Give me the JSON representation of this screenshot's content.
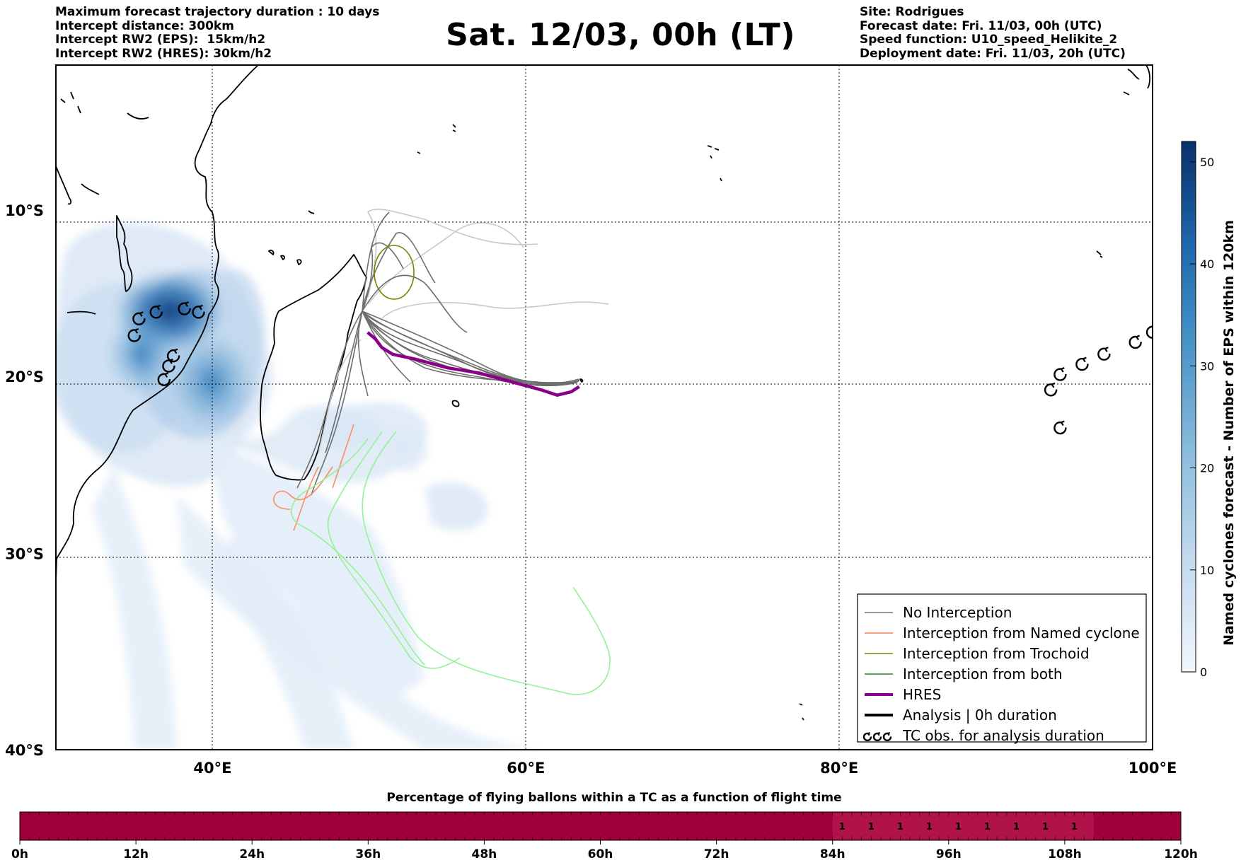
{
  "header": {
    "left_lines": [
      "Maximum forecast trajectory duration : 10 days",
      "Intercept distance: 300km",
      "Intercept RW2 (EPS):  15km/h2",
      "Intercept RW2 (HRES): 30km/h2"
    ],
    "title": "Sat. 12/03, 00h (LT)",
    "right_lines": [
      "Site: Rodrigues",
      "Forecast date: Fri. 11/03, 00h (UTC)",
      "Speed function: U10_speed_Helikite_2",
      "Deployment date: Fri. 11/03, 20h (UTC)"
    ]
  },
  "map": {
    "lon_range": [
      30,
      100
    ],
    "lat_range": [
      -40,
      -1
    ],
    "lon_ticks": [
      {
        "value": 40,
        "label": "40°E"
      },
      {
        "value": 60,
        "label": "60°E"
      },
      {
        "value": 80,
        "label": "80°E"
      },
      {
        "value": 100,
        "label": "100°E"
      }
    ],
    "lat_ticks": [
      {
        "value": -10,
        "label": "10°S"
      },
      {
        "value": -20,
        "label": "20°S"
      },
      {
        "value": -30,
        "label": "30°S"
      },
      {
        "value": -40,
        "label": "40°S"
      }
    ],
    "colors": {
      "no_interception": "#777777",
      "named_cyclone": "#ff7f50",
      "trochoid": "#808000",
      "both": "#90ee90",
      "hres": "#8b008b",
      "analysis": "#000000"
    },
    "tc_obs_positions": [
      [
        35,
        -17.6
      ],
      [
        35.3,
        -16.6
      ],
      [
        36.4,
        -16.2
      ],
      [
        38.2,
        -16
      ],
      [
        39.1,
        -16.2
      ],
      [
        37.5,
        -18.8
      ],
      [
        37.2,
        -19.4
      ],
      [
        36.9,
        -20.2
      ],
      [
        93.5,
        -20.8
      ],
      [
        94.1,
        -19.9
      ],
      [
        95.5,
        -19.3
      ],
      [
        96.9,
        -18.7
      ],
      [
        98.9,
        -18
      ],
      [
        100,
        -17.4
      ],
      [
        94.1,
        -23
      ]
    ],
    "hres_track": [
      [
        49.9,
        -17.4
      ],
      [
        50.4,
        -17.8
      ],
      [
        50.8,
        -18.3
      ],
      [
        51.5,
        -18.7
      ],
      [
        53,
        -19
      ],
      [
        55,
        -19.5
      ],
      [
        57,
        -19.8
      ],
      [
        59,
        -20.3
      ],
      [
        61,
        -20.8
      ],
      [
        62,
        -21.1
      ],
      [
        62.9,
        -20.9
      ],
      [
        63.4,
        -20.6
      ]
    ],
    "legend": [
      {
        "label": "No Interception",
        "style": "no_interception"
      },
      {
        "label": "Interception from Named cyclone",
        "style": "named_cyclone"
      },
      {
        "label": "Interception from Trochoid",
        "style": "trochoid"
      },
      {
        "label": "Interception from both",
        "style": "both"
      },
      {
        "label": "HRES",
        "style": "hres"
      },
      {
        "label": "Analysis | 0h duration",
        "style": "analysis"
      },
      {
        "label": "TC obs. for analysis duration",
        "style": "tc_obs"
      }
    ]
  },
  "colorbar": {
    "label": "Named cyclones forecast - Number of EPS within 120km",
    "range": [
      0,
      52
    ],
    "ticks": [
      0,
      10,
      20,
      30,
      40,
      50
    ],
    "color_low": "#eaf2fb",
    "color_high": "#08306b"
  },
  "time_bar": {
    "title": "Percentage of flying ballons within a TC as a function of flight time",
    "range_hours": [
      0,
      120
    ],
    "ticks": [
      {
        "value": 0,
        "label": "0h"
      },
      {
        "value": 12,
        "label": "12h"
      },
      {
        "value": 24,
        "label": "24h"
      },
      {
        "value": 36,
        "label": "36h"
      },
      {
        "value": 48,
        "label": "48h"
      },
      {
        "value": 60,
        "label": "60h"
      },
      {
        "value": 72,
        "label": "72h"
      },
      {
        "value": 84,
        "label": "84h"
      },
      {
        "value": 96,
        "label": "96h"
      },
      {
        "value": 108,
        "label": "108h"
      },
      {
        "value": 120,
        "label": "120h"
      }
    ],
    "base_color": "#a0003c",
    "highlight_color": "#b0124a",
    "highlight_range_hours": [
      84,
      111
    ],
    "value_points": [
      {
        "hour": 85,
        "label": "1"
      },
      {
        "hour": 88,
        "label": "1"
      },
      {
        "hour": 91,
        "label": "1"
      },
      {
        "hour": 94,
        "label": "1"
      },
      {
        "hour": 97,
        "label": "1"
      },
      {
        "hour": 100,
        "label": "1"
      },
      {
        "hour": 103,
        "label": "1"
      },
      {
        "hour": 106,
        "label": "1"
      },
      {
        "hour": 109,
        "label": "1"
      }
    ]
  }
}
